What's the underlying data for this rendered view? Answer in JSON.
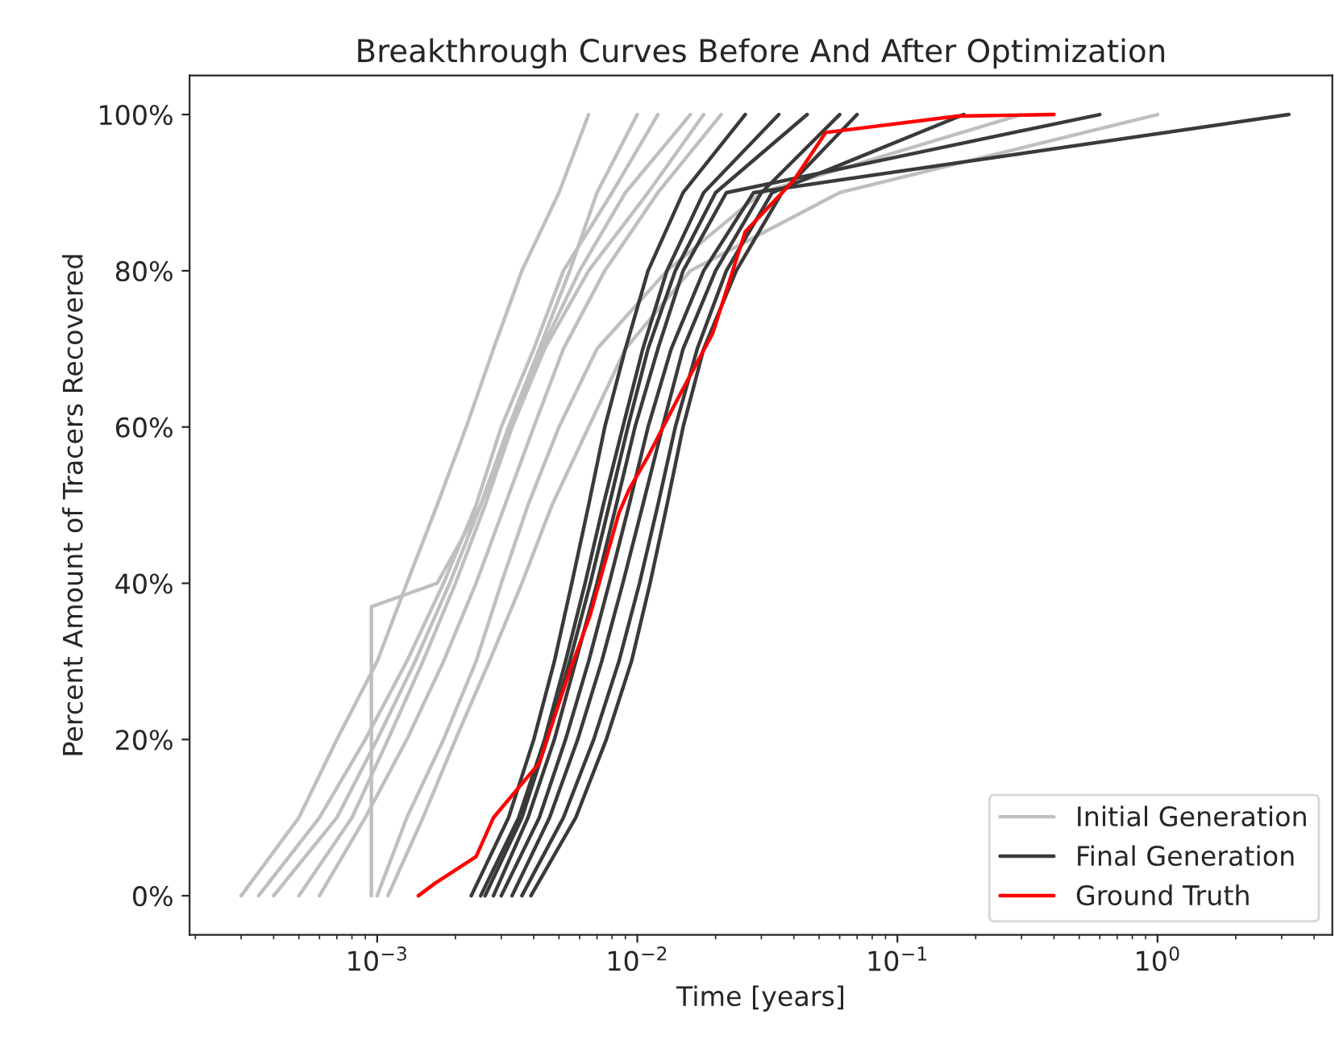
{
  "chart_data": {
    "type": "line",
    "title": "Breakthrough Curves Before And After Optimization",
    "xlabel": "Time [years]",
    "ylabel": "Percent Amount of Tracers Recovered",
    "log": "x",
    "xlim": [
      0.00019,
      4.7
    ],
    "xticks": [
      {
        "value": 0.001,
        "label": "10$^{−3}$"
      },
      {
        "value": 0.01,
        "label": "10$^{−2}$"
      },
      {
        "value": 0.1,
        "label": "10$^{−1}$"
      },
      {
        "value": 1,
        "label": "10$^{0}$"
      }
    ],
    "ylim": [
      -5,
      105
    ],
    "yticks": [
      {
        "value": 0,
        "label": "0%"
      },
      {
        "value": 20,
        "label": "20%"
      },
      {
        "value": 40,
        "label": "40%"
      },
      {
        "value": 60,
        "label": "60%"
      },
      {
        "value": 80,
        "label": "80%"
      },
      {
        "value": 100,
        "label": "100%"
      }
    ],
    "grid": false,
    "legend": "bottom right",
    "marker": "none",
    "line_style": "solid",
    "series": [
      {
        "name": "Initial Generation",
        "color": "#bfbfbf",
        "x": [
          0.0003,
          0.0005,
          0.0007,
          0.001,
          0.0013,
          0.0017,
          0.0022,
          0.0028,
          0.0036,
          0.005,
          0.0065
        ],
        "values": [
          0,
          10,
          20,
          30,
          40,
          50,
          60,
          70,
          80,
          90,
          100
        ]
      },
      {
        "color": "#bfbfbf",
        "x": [
          0.00035,
          0.0006,
          0.0009,
          0.0013,
          0.0018,
          0.0024,
          0.003,
          0.004,
          0.0052,
          0.008,
          0.012
        ],
        "values": [
          0,
          10,
          20,
          30,
          40,
          50,
          60,
          70,
          80,
          90,
          100
        ]
      },
      {
        "color": "#bfbfbf",
        "x": [
          0.0005,
          0.0008,
          0.0011,
          0.0015,
          0.002,
          0.0026,
          0.0033,
          0.0043,
          0.006,
          0.009,
          0.016
        ],
        "values": [
          0,
          10,
          20,
          30,
          40,
          50,
          60,
          70,
          80,
          90,
          100
        ]
      },
      {
        "color": "#bfbfbf",
        "x": [
          0.0006,
          0.0009,
          0.0013,
          0.0018,
          0.0024,
          0.0031,
          0.004,
          0.0052,
          0.0075,
          0.012,
          0.021
        ],
        "values": [
          0,
          10,
          20,
          30,
          40,
          50,
          60,
          70,
          80,
          90,
          100
        ]
      },
      {
        "color": "#bfbfbf",
        "x": [
          0.00095,
          0.00095,
          0.0017,
          0.0025,
          0.0033,
          0.0044,
          0.0065,
          0.011,
          0.018
        ],
        "values": [
          0,
          37,
          40,
          50,
          60,
          70,
          80,
          90,
          100
        ]
      },
      {
        "color": "#bfbfbf",
        "x": [
          0.0011,
          0.0015,
          0.002,
          0.0027,
          0.0036,
          0.0047,
          0.0065,
          0.009,
          0.016,
          0.06,
          1.0
        ],
        "values": [
          0,
          10,
          20,
          30,
          40,
          50,
          60,
          70,
          80,
          90,
          100
        ]
      },
      {
        "color": "#bfbfbf",
        "x": [
          0.001,
          0.0013,
          0.0018,
          0.0024,
          0.003,
          0.0038,
          0.005,
          0.007,
          0.013,
          0.03,
          0.3
        ],
        "values": [
          0,
          10,
          20,
          30,
          40,
          50,
          60,
          70,
          80,
          90,
          100
        ]
      },
      {
        "color": "#bfbfbf",
        "x": [
          0.0004,
          0.0007,
          0.001,
          0.0014,
          0.0019,
          0.0025,
          0.0032,
          0.0042,
          0.0055,
          0.007,
          0.01
        ],
        "values": [
          0,
          10,
          20,
          30,
          40,
          50,
          60,
          70,
          80,
          90,
          100
        ]
      },
      {
        "name": "Final Generation",
        "color": "#3a3a3a",
        "x": [
          0.0023,
          0.0032,
          0.004,
          0.0048,
          0.0056,
          0.0065,
          0.0075,
          0.009,
          0.011,
          0.015,
          0.026
        ],
        "values": [
          0,
          10,
          20,
          30,
          40,
          50,
          60,
          70,
          80,
          90,
          100
        ]
      },
      {
        "color": "#3a3a3a",
        "x": [
          0.0025,
          0.0035,
          0.0044,
          0.0053,
          0.0063,
          0.0074,
          0.0088,
          0.0105,
          0.013,
          0.018,
          0.035
        ],
        "values": [
          0,
          10,
          20,
          30,
          40,
          50,
          60,
          70,
          80,
          90,
          100
        ]
      },
      {
        "color": "#3a3a3a",
        "x": [
          0.0028,
          0.0038,
          0.0048,
          0.0058,
          0.007,
          0.0083,
          0.0098,
          0.012,
          0.015,
          0.022,
          0.6
        ],
        "values": [
          0,
          10,
          20,
          30,
          40,
          50,
          60,
          70,
          80,
          90,
          100
        ]
      },
      {
        "color": "#3a3a3a",
        "x": [
          0.003,
          0.0042,
          0.0053,
          0.0065,
          0.0078,
          0.0093,
          0.011,
          0.0135,
          0.018,
          0.028,
          3.2
        ],
        "values": [
          0,
          10,
          20,
          30,
          40,
          50,
          60,
          70,
          80,
          90,
          100
        ]
      },
      {
        "color": "#3a3a3a",
        "x": [
          0.0033,
          0.0046,
          0.0059,
          0.0073,
          0.0088,
          0.0105,
          0.0125,
          0.015,
          0.02,
          0.03,
          0.06
        ],
        "values": [
          0,
          10,
          20,
          30,
          40,
          50,
          60,
          70,
          80,
          90,
          100
        ]
      },
      {
        "color": "#3a3a3a",
        "x": [
          0.0036,
          0.0052,
          0.0068,
          0.0085,
          0.0102,
          0.012,
          0.014,
          0.017,
          0.022,
          0.033,
          0.18
        ],
        "values": [
          0,
          10,
          20,
          30,
          40,
          50,
          60,
          70,
          80,
          90,
          100
        ]
      },
      {
        "color": "#3a3a3a",
        "x": [
          0.0039,
          0.0058,
          0.0076,
          0.0095,
          0.0112,
          0.013,
          0.015,
          0.018,
          0.024,
          0.036,
          0.07
        ],
        "values": [
          0,
          10,
          20,
          30,
          40,
          50,
          60,
          70,
          80,
          90,
          100
        ]
      },
      {
        "color": "#3a3a3a",
        "x": [
          0.0026,
          0.0036,
          0.0045,
          0.0055,
          0.0066,
          0.0078,
          0.0092,
          0.011,
          0.014,
          0.02,
          0.045
        ],
        "values": [
          0,
          10,
          20,
          30,
          40,
          50,
          60,
          70,
          80,
          90,
          100
        ]
      },
      {
        "name": "Ground Truth",
        "color": "#ff0000",
        "x": [
          0.00144,
          0.00167,
          0.0024,
          0.0028,
          0.0042,
          0.0054,
          0.0066,
          0.0085,
          0.0093,
          0.0109,
          0.0145,
          0.0195,
          0.026,
          0.04,
          0.053,
          0.17,
          0.4
        ],
        "values": [
          0,
          1.6,
          5,
          10,
          17,
          28,
          36,
          49,
          52,
          56,
          64,
          72,
          85,
          91.6,
          97.7,
          99.8,
          100
        ]
      }
    ]
  }
}
